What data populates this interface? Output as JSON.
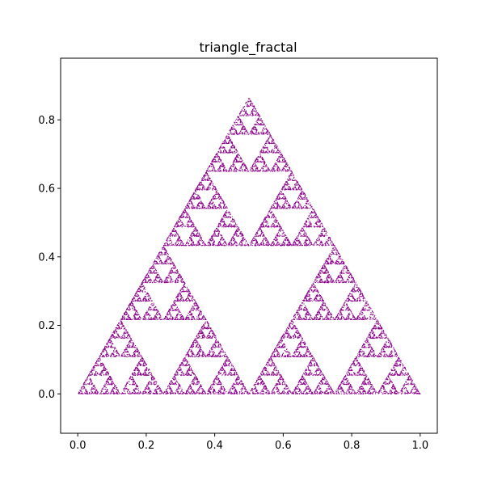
{
  "chart_data": {
    "type": "scatter",
    "title": "triangle_fractal",
    "xlabel": "",
    "ylabel": "",
    "xlim": [
      -0.05,
      1.05
    ],
    "ylim": [
      -0.115,
      0.98
    ],
    "xticks": [
      0.0,
      0.2,
      0.4,
      0.6,
      0.8,
      1.0
    ],
    "xtick_labels": [
      "0.0",
      "0.2",
      "0.4",
      "0.6",
      "0.8",
      "1.0"
    ],
    "yticks": [
      0.0,
      0.2,
      0.4,
      0.6,
      0.8
    ],
    "ytick_labels": [
      "0.0",
      "0.2",
      "0.4",
      "0.6",
      "0.8"
    ],
    "grid": false,
    "legend": "none",
    "series": [
      {
        "marker": "point",
        "color": "#8b008b",
        "generator": "sierpinski-chaos-game",
        "vertices": [
          [
            0.0,
            0.0
          ],
          [
            1.0,
            0.0
          ],
          [
            0.5,
            0.866
          ]
        ],
        "point_count": 20000
      }
    ]
  }
}
